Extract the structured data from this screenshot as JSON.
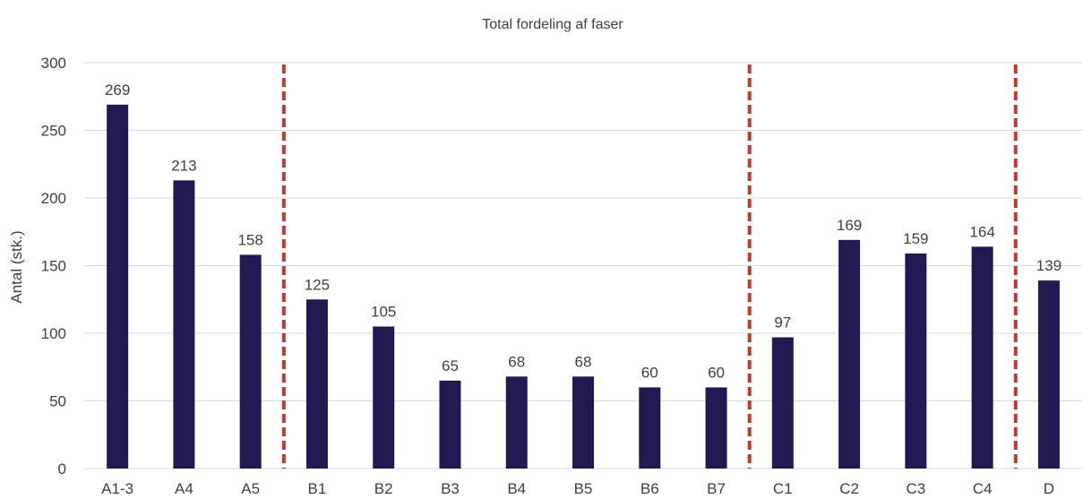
{
  "chart_data": {
    "type": "bar",
    "title": "Total fordeling af faser",
    "xlabel": "",
    "ylabel": "Antal (stk.)",
    "ylim": [
      0,
      300
    ],
    "yticks": [
      0,
      50,
      100,
      150,
      200,
      250,
      300
    ],
    "categories": [
      "A1-3",
      "A4",
      "A5",
      "B1",
      "B2",
      "B3",
      "B4",
      "B5",
      "B6",
      "B7",
      "C1",
      "C2",
      "C3",
      "C4",
      "D"
    ],
    "values": [
      269,
      213,
      158,
      125,
      105,
      65,
      68,
      68,
      60,
      60,
      97,
      169,
      159,
      164,
      139
    ],
    "data_labels": [
      "269",
      "213",
      "158",
      "125",
      "105",
      "65",
      "68",
      "68",
      "60",
      "60",
      "97",
      "169",
      "159",
      "164",
      "139"
    ],
    "bar_color": "#211A52",
    "separator_color": "#C0392B",
    "separators_after_categories": [
      "A5",
      "B7",
      "C4"
    ],
    "grid": true,
    "legend": "none"
  }
}
